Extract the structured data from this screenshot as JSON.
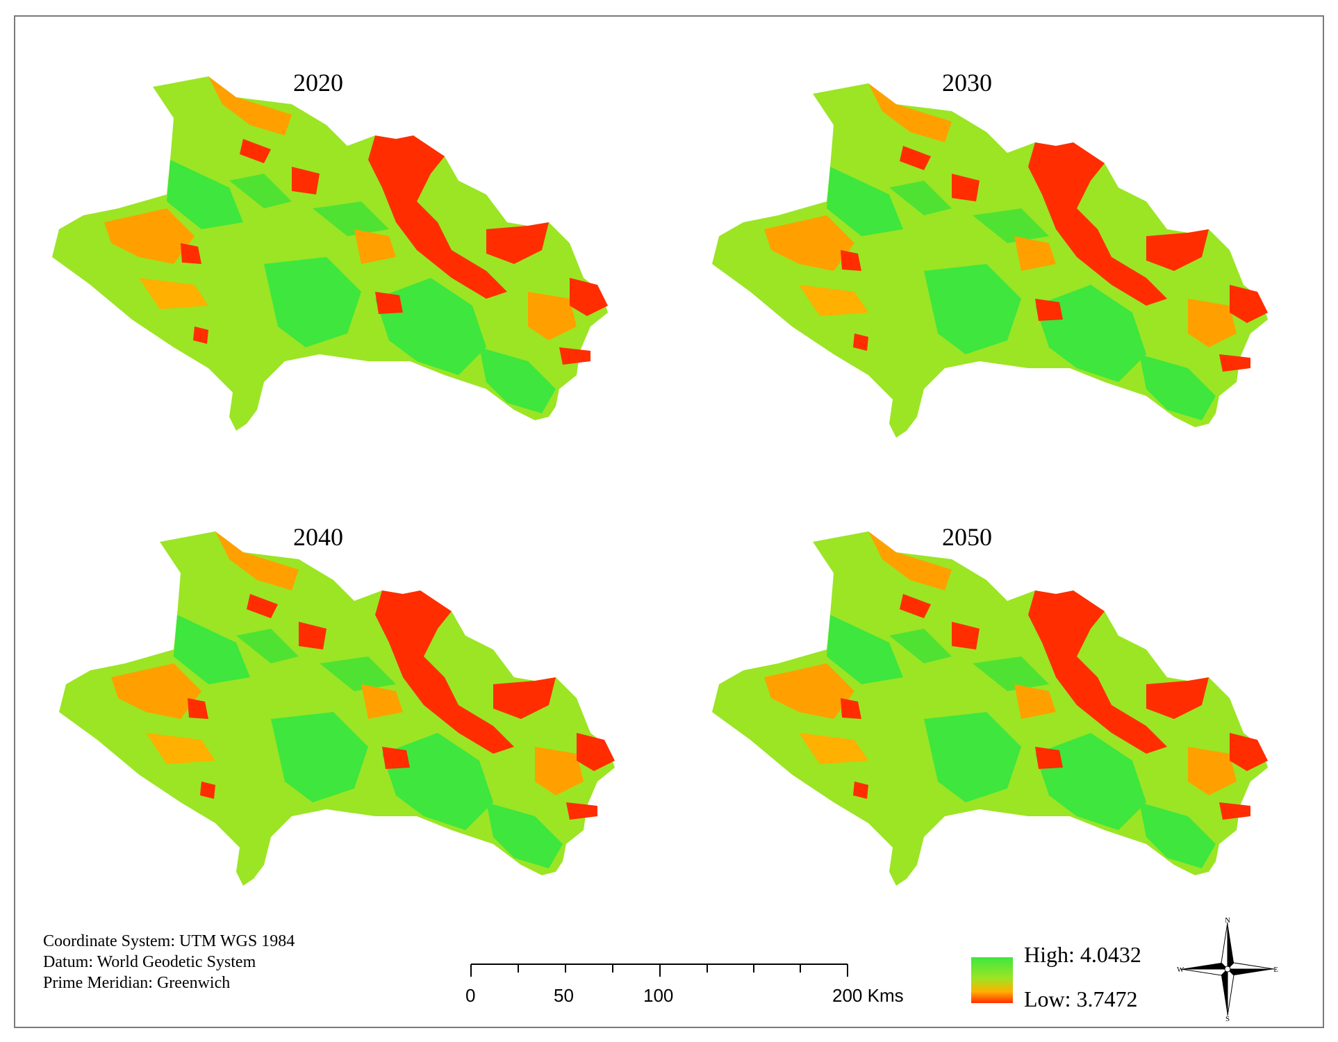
{
  "panels": [
    {
      "id": "2020",
      "title": "2020"
    },
    {
      "id": "2030",
      "title": "2030"
    },
    {
      "id": "2040",
      "title": "2040"
    },
    {
      "id": "2050",
      "title": "2050"
    }
  ],
  "info": {
    "line1": "Coordinate System: UTM WGS 1984",
    "line2": "Datum: World Geodetic System",
    "line3": "Prime Meridian: Greenwich"
  },
  "scale_bar": {
    "labels": [
      "0",
      "50",
      "100",
      "200 Kms"
    ]
  },
  "legend": {
    "high": "High: 4.0432",
    "low": "Low: 3.7472",
    "colors": {
      "high": "#3ee63e",
      "mid": "#9be524",
      "low": "#ff2d00",
      "orange": "#ffa000"
    }
  },
  "compass": {
    "n": "N",
    "s": "S",
    "e": "E",
    "w": "W"
  }
}
